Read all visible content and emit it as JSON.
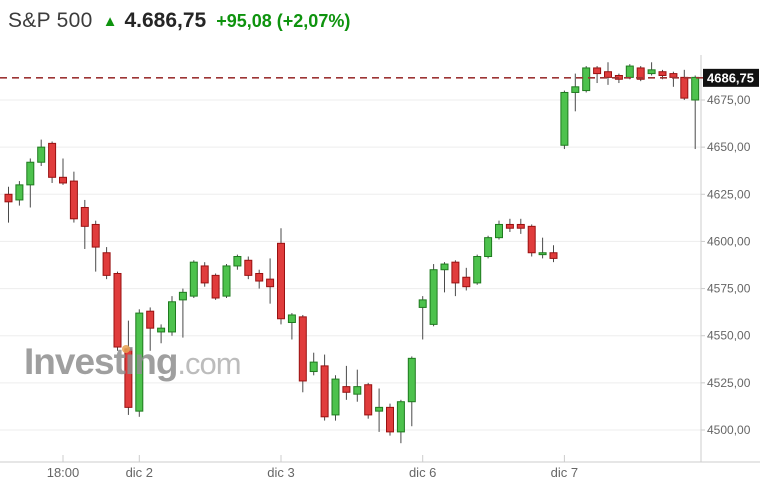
{
  "header": {
    "symbol": "S&P 500",
    "arrow_up": "▲",
    "price": "4.686,75",
    "change": "+95,08 (+2,07%)"
  },
  "watermark": {
    "brand": "Investing",
    "suffix": ".com"
  },
  "chart_data": {
    "type": "candlestick",
    "title": "S&P 500 intraday 30-min candles",
    "ylim": [
      4490,
      4700
    ],
    "grid": "horizontal",
    "price_line": {
      "price": 4686.75,
      "label": "4686,75"
    },
    "y_ticks": [
      {
        "price": 4675,
        "label": "4675,00"
      },
      {
        "price": 4650,
        "label": "4650,00"
      },
      {
        "price": 4625,
        "label": "4625,00"
      },
      {
        "price": 4600,
        "label": "4600,00"
      },
      {
        "price": 4575,
        "label": "4575,00"
      },
      {
        "price": 4550,
        "label": "4550,00"
      },
      {
        "price": 4525,
        "label": "4525,00"
      },
      {
        "price": 4500,
        "label": "4500,00"
      }
    ],
    "x_ticks": [
      {
        "index": 5,
        "label": "18:00"
      },
      {
        "index": 12,
        "label": "dic 2"
      },
      {
        "index": 25,
        "label": "dic 3"
      },
      {
        "index": 38,
        "label": "dic 6"
      },
      {
        "index": 51,
        "label": "dic 7"
      }
    ],
    "colors": {
      "up_fill": "#4dc24d",
      "up_border": "#1f7a1f",
      "down_fill": "#e03c3c",
      "down_border": "#991111",
      "wick": "#4a4a4a",
      "price_line": "#9c3434",
      "price_badge_bg": "#111111",
      "price_badge_text": "#ffffff",
      "grid": "#ededed",
      "axis": "#cccccc",
      "axis_text": "#666666"
    },
    "candles_ohlc": [
      [
        4625,
        4629,
        4610,
        4621
      ],
      [
        4622,
        4632,
        4619,
        4630
      ],
      [
        4630,
        4644,
        4618,
        4642
      ],
      [
        4642,
        4654,
        4640,
        4650
      ],
      [
        4652,
        4653,
        4631,
        4634
      ],
      [
        4634,
        4644,
        4630,
        4631
      ],
      [
        4632,
        4637,
        4610,
        4612
      ],
      [
        4618,
        4622,
        4596,
        4608
      ],
      [
        4609,
        4611,
        4584,
        4597
      ],
      [
        4594,
        4597,
        4580,
        4582
      ],
      [
        4583,
        4584,
        4542,
        4544
      ],
      [
        4543,
        4558,
        4508,
        4512
      ],
      [
        4510,
        4564,
        4507,
        4562
      ],
      [
        4563,
        4565,
        4542,
        4554
      ],
      [
        4552,
        4556,
        4546,
        4554
      ],
      [
        4552,
        4571,
        4550,
        4568
      ],
      [
        4569,
        4575,
        4549,
        4573
      ],
      [
        4571,
        4590,
        4570,
        4589
      ],
      [
        4587,
        4589,
        4576,
        4578
      ],
      [
        4582,
        4583,
        4569,
        4570
      ],
      [
        4571,
        4588,
        4570,
        4587
      ],
      [
        4587,
        4593,
        4585,
        4592
      ],
      [
        4590,
        4592,
        4580,
        4582
      ],
      [
        4583,
        4585,
        4575,
        4579
      ],
      [
        4580,
        4591,
        4567,
        4576
      ],
      [
        4599,
        4607,
        4556,
        4559
      ],
      [
        4557,
        4562,
        4548,
        4561
      ],
      [
        4560,
        4561,
        4520,
        4526
      ],
      [
        4531,
        4541,
        4529,
        4536
      ],
      [
        4534,
        4540,
        4505,
        4507
      ],
      [
        4508,
        4529,
        4505,
        4527
      ],
      [
        4523,
        4534,
        4516,
        4520
      ],
      [
        4519,
        4532,
        4515,
        4523
      ],
      [
        4524,
        4525,
        4506,
        4508
      ],
      [
        4510,
        4522,
        4499,
        4512
      ],
      [
        4512,
        4514,
        4497,
        4499
      ],
      [
        4499,
        4516,
        4493,
        4515
      ],
      [
        4515,
        4539,
        4502,
        4538
      ],
      [
        4565,
        4571,
        4548,
        4569
      ],
      [
        4556,
        4588,
        4555,
        4585
      ],
      [
        4585,
        4589,
        4573,
        4588
      ],
      [
        4589,
        4590,
        4571,
        4578
      ],
      [
        4581,
        4586,
        4574,
        4576
      ],
      [
        4578,
        4593,
        4577,
        4592
      ],
      [
        4592,
        4603,
        4591,
        4602
      ],
      [
        4602,
        4611,
        4601,
        4609
      ],
      [
        4609,
        4612,
        4605,
        4607
      ],
      [
        4609,
        4612,
        4604,
        4607
      ],
      [
        4608,
        4609,
        4592,
        4594
      ],
      [
        4593,
        4602,
        4591,
        4594
      ],
      [
        4594,
        4598,
        4589,
        4591
      ],
      [
        4651,
        4680,
        4649,
        4679
      ],
      [
        4679,
        4689,
        4669,
        4682
      ],
      [
        4680,
        4693,
        4679,
        4692
      ],
      [
        4692,
        4693,
        4684,
        4689
      ],
      [
        4690,
        4695,
        4683,
        4687
      ],
      [
        4688,
        4689,
        4684,
        4686
      ],
      [
        4687,
        4694,
        4686,
        4693
      ],
      [
        4692,
        4693,
        4685,
        4686
      ],
      [
        4689,
        4695,
        4688,
        4691
      ],
      [
        4690,
        4691,
        4686,
        4688
      ],
      [
        4689,
        4690,
        4682,
        4687
      ],
      [
        4687,
        4691,
        4675,
        4676
      ],
      [
        4675,
        4688,
        4649,
        4687
      ]
    ]
  }
}
